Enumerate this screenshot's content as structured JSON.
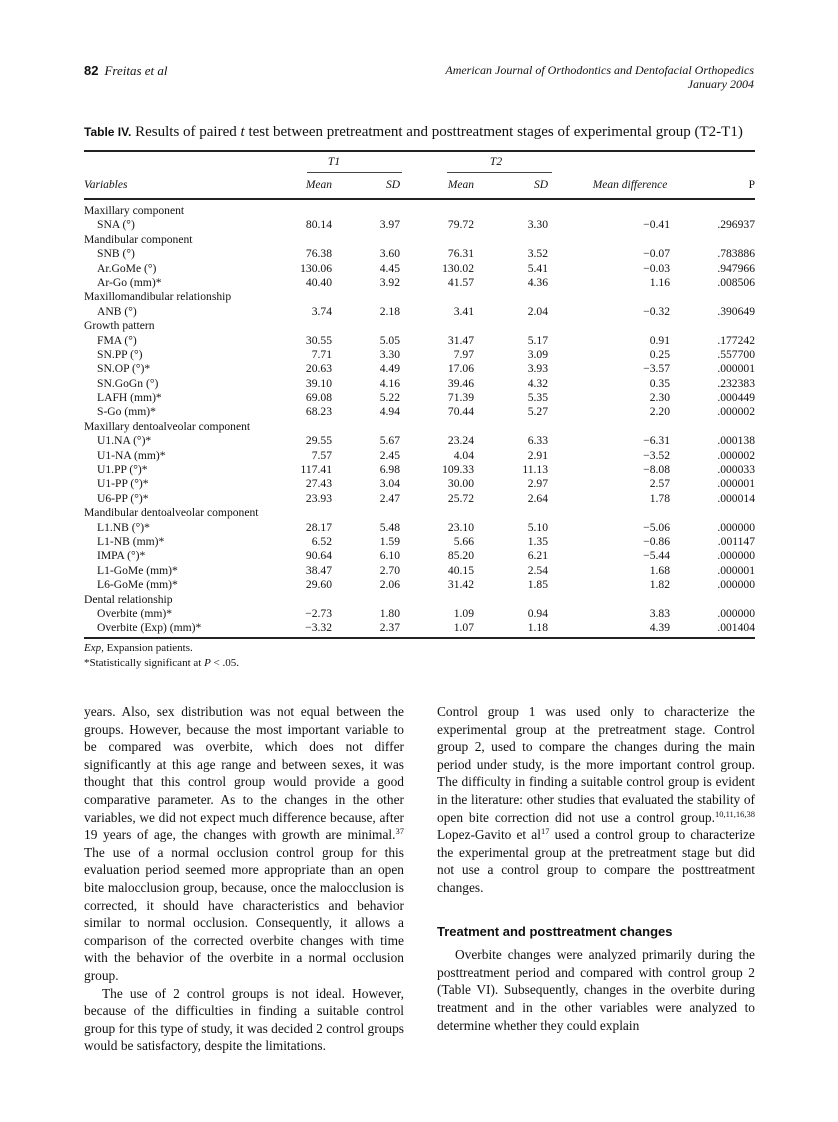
{
  "header": {
    "page_number": "82",
    "authors": "Freitas et al",
    "journal": "American Journal of Orthodontics and Dentofacial Orthopedics",
    "issue": "January 2004"
  },
  "table": {
    "label": "Table IV.",
    "caption_before": " Results of paired ",
    "caption_italic": "t",
    "caption_after": " test between pretreatment and posttreatment stages of experimental group (T2-T1)",
    "group_headers": [
      "T1",
      "T2"
    ],
    "columns": [
      "Variables",
      "Mean",
      "SD",
      "Mean",
      "SD",
      "Mean difference",
      "P"
    ],
    "rows": [
      {
        "group": "Maxillary component"
      },
      {
        "v": "SNA (°)",
        "c": [
          "80.14",
          "3.97",
          "79.72",
          "3.30",
          "−0.41",
          ".296937"
        ]
      },
      {
        "group": "Mandibular component"
      },
      {
        "v": "SNB (°)",
        "c": [
          "76.38",
          "3.60",
          "76.31",
          "3.52",
          "−0.07",
          ".783886"
        ]
      },
      {
        "v": "Ar.GoMe (°)",
        "c": [
          "130.06",
          "4.45",
          "130.02",
          "5.41",
          "−0.03",
          ".947966"
        ]
      },
      {
        "v": "Ar-Go (mm)*",
        "c": [
          "40.40",
          "3.92",
          "41.57",
          "4.36",
          "1.16",
          ".008506"
        ]
      },
      {
        "group": "Maxillomandibular relationship"
      },
      {
        "v": "ANB (°)",
        "c": [
          "3.74",
          "2.18",
          "3.41",
          "2.04",
          "−0.32",
          ".390649"
        ]
      },
      {
        "group": "Growth pattern"
      },
      {
        "v": "FMA (°)",
        "c": [
          "30.55",
          "5.05",
          "31.47",
          "5.17",
          "0.91",
          ".177242"
        ]
      },
      {
        "v": "SN.PP (°)",
        "c": [
          "7.71",
          "3.30",
          "7.97",
          "3.09",
          "0.25",
          ".557700"
        ]
      },
      {
        "v": "SN.OP (°)*",
        "c": [
          "20.63",
          "4.49",
          "17.06",
          "3.93",
          "−3.57",
          ".000001"
        ]
      },
      {
        "v": "SN.GoGn (°)",
        "c": [
          "39.10",
          "4.16",
          "39.46",
          "4.32",
          "0.35",
          ".232383"
        ]
      },
      {
        "v": "LAFH (mm)*",
        "c": [
          "69.08",
          "5.22",
          "71.39",
          "5.35",
          "2.30",
          ".000449"
        ]
      },
      {
        "v": "S-Go (mm)*",
        "c": [
          "68.23",
          "4.94",
          "70.44",
          "5.27",
          "2.20",
          ".000002"
        ]
      },
      {
        "group": "Maxillary dentoalveolar component"
      },
      {
        "v": "U1.NA (°)*",
        "c": [
          "29.55",
          "5.67",
          "23.24",
          "6.33",
          "−6.31",
          ".000138"
        ]
      },
      {
        "v": "U1-NA (mm)*",
        "c": [
          "7.57",
          "2.45",
          "4.04",
          "2.91",
          "−3.52",
          ".000002"
        ]
      },
      {
        "v": "U1.PP (°)*",
        "c": [
          "117.41",
          "6.98",
          "109.33",
          "11.13",
          "−8.08",
          ".000033"
        ]
      },
      {
        "v": "U1-PP (°)*",
        "c": [
          "27.43",
          "3.04",
          "30.00",
          "2.97",
          "2.57",
          ".000001"
        ]
      },
      {
        "v": "U6-PP (°)*",
        "c": [
          "23.93",
          "2.47",
          "25.72",
          "2.64",
          "1.78",
          ".000014"
        ]
      },
      {
        "group": "Mandibular dentoalveolar component"
      },
      {
        "v": "L1.NB (°)*",
        "c": [
          "28.17",
          "5.48",
          "23.10",
          "5.10",
          "−5.06",
          ".000000"
        ]
      },
      {
        "v": "L1-NB (mm)*",
        "c": [
          "6.52",
          "1.59",
          "5.66",
          "1.35",
          "−0.86",
          ".001147"
        ]
      },
      {
        "v": "IMPA (°)*",
        "c": [
          "90.64",
          "6.10",
          "85.20",
          "6.21",
          "−5.44",
          ".000000"
        ]
      },
      {
        "v": "L1-GoMe (mm)*",
        "c": [
          "38.47",
          "2.70",
          "40.15",
          "2.54",
          "1.68",
          ".000001"
        ]
      },
      {
        "v": "L6-GoMe (mm)*",
        "c": [
          "29.60",
          "2.06",
          "31.42",
          "1.85",
          "1.82",
          ".000000"
        ]
      },
      {
        "group": "Dental relationship"
      },
      {
        "v": "Overbite (mm)*",
        "c": [
          "−2.73",
          "1.80",
          "1.09",
          "0.94",
          "3.83",
          ".000000"
        ]
      },
      {
        "v": "Overbite (Exp) (mm)*",
        "c": [
          "−3.32",
          "2.37",
          "1.07",
          "1.18",
          "4.39",
          ".001404"
        ]
      }
    ],
    "footnote_abbrev_italic": "Exp,",
    "footnote_abbrev_text": " Expansion patients.",
    "footnote_sig_before": "*Statistically significant at ",
    "footnote_sig_italic": "P",
    "footnote_sig_after": " < .05."
  },
  "body": {
    "left": [
      {
        "indent": false,
        "segments": [
          {
            "t": "years. Also, sex distribution was not equal between the groups. However, because the most important variable to be compared was overbite, which does not differ significantly at this age range and between sexes, it was thought that this control group would provide a good comparative parameter. As to the changes in the other variables, we did not expect much difference because, after 19 years of age, the changes with growth are minimal."
          },
          {
            "t": "37",
            "sup": true
          },
          {
            "t": " The use of a normal occlusion control group for this evaluation period seemed more appropriate than an open bite malocclusion group, because, once the malocclusion is corrected, it should have characteristics and behavior similar to normal occlusion. Consequently, it allows a comparison of the corrected overbite changes with time with the behavior of the overbite in a normal occlusion group."
          }
        ]
      },
      {
        "indent": true,
        "segments": [
          {
            "t": "The use of 2 control groups is not ideal. However, because of the difficulties in finding a suitable control group for this type of study, it was decided 2 control groups would be satisfactory, despite the limitations."
          }
        ]
      }
    ],
    "right": [
      {
        "indent": false,
        "segments": [
          {
            "t": "Control group 1 was used only to characterize the experimental group at the pretreatment stage. Control group 2, used to compare the changes during the main period under study, is the more important control group. The difficulty in finding a suitable control group is evident in the literature: other studies that evaluated the stability of open bite correction did not use a control group."
          },
          {
            "t": "10,11,16,38",
            "sup": true
          },
          {
            "t": " Lopez-Gavito et al"
          },
          {
            "t": "17",
            "sup": true
          },
          {
            "t": " used a control group to characterize the experimental group at the pretreatment stage but did not use a control group to compare the posttreatment changes."
          }
        ]
      }
    ],
    "section_heading": "Treatment and posttreatment changes",
    "right_after": [
      {
        "indent": true,
        "segments": [
          {
            "t": "Overbite changes were analyzed primarily during the posttreatment period and compared with control group 2 (Table VI). Subsequently, changes in the overbite during treatment and in the other variables were analyzed to determine whether they could explain"
          }
        ]
      }
    ]
  }
}
